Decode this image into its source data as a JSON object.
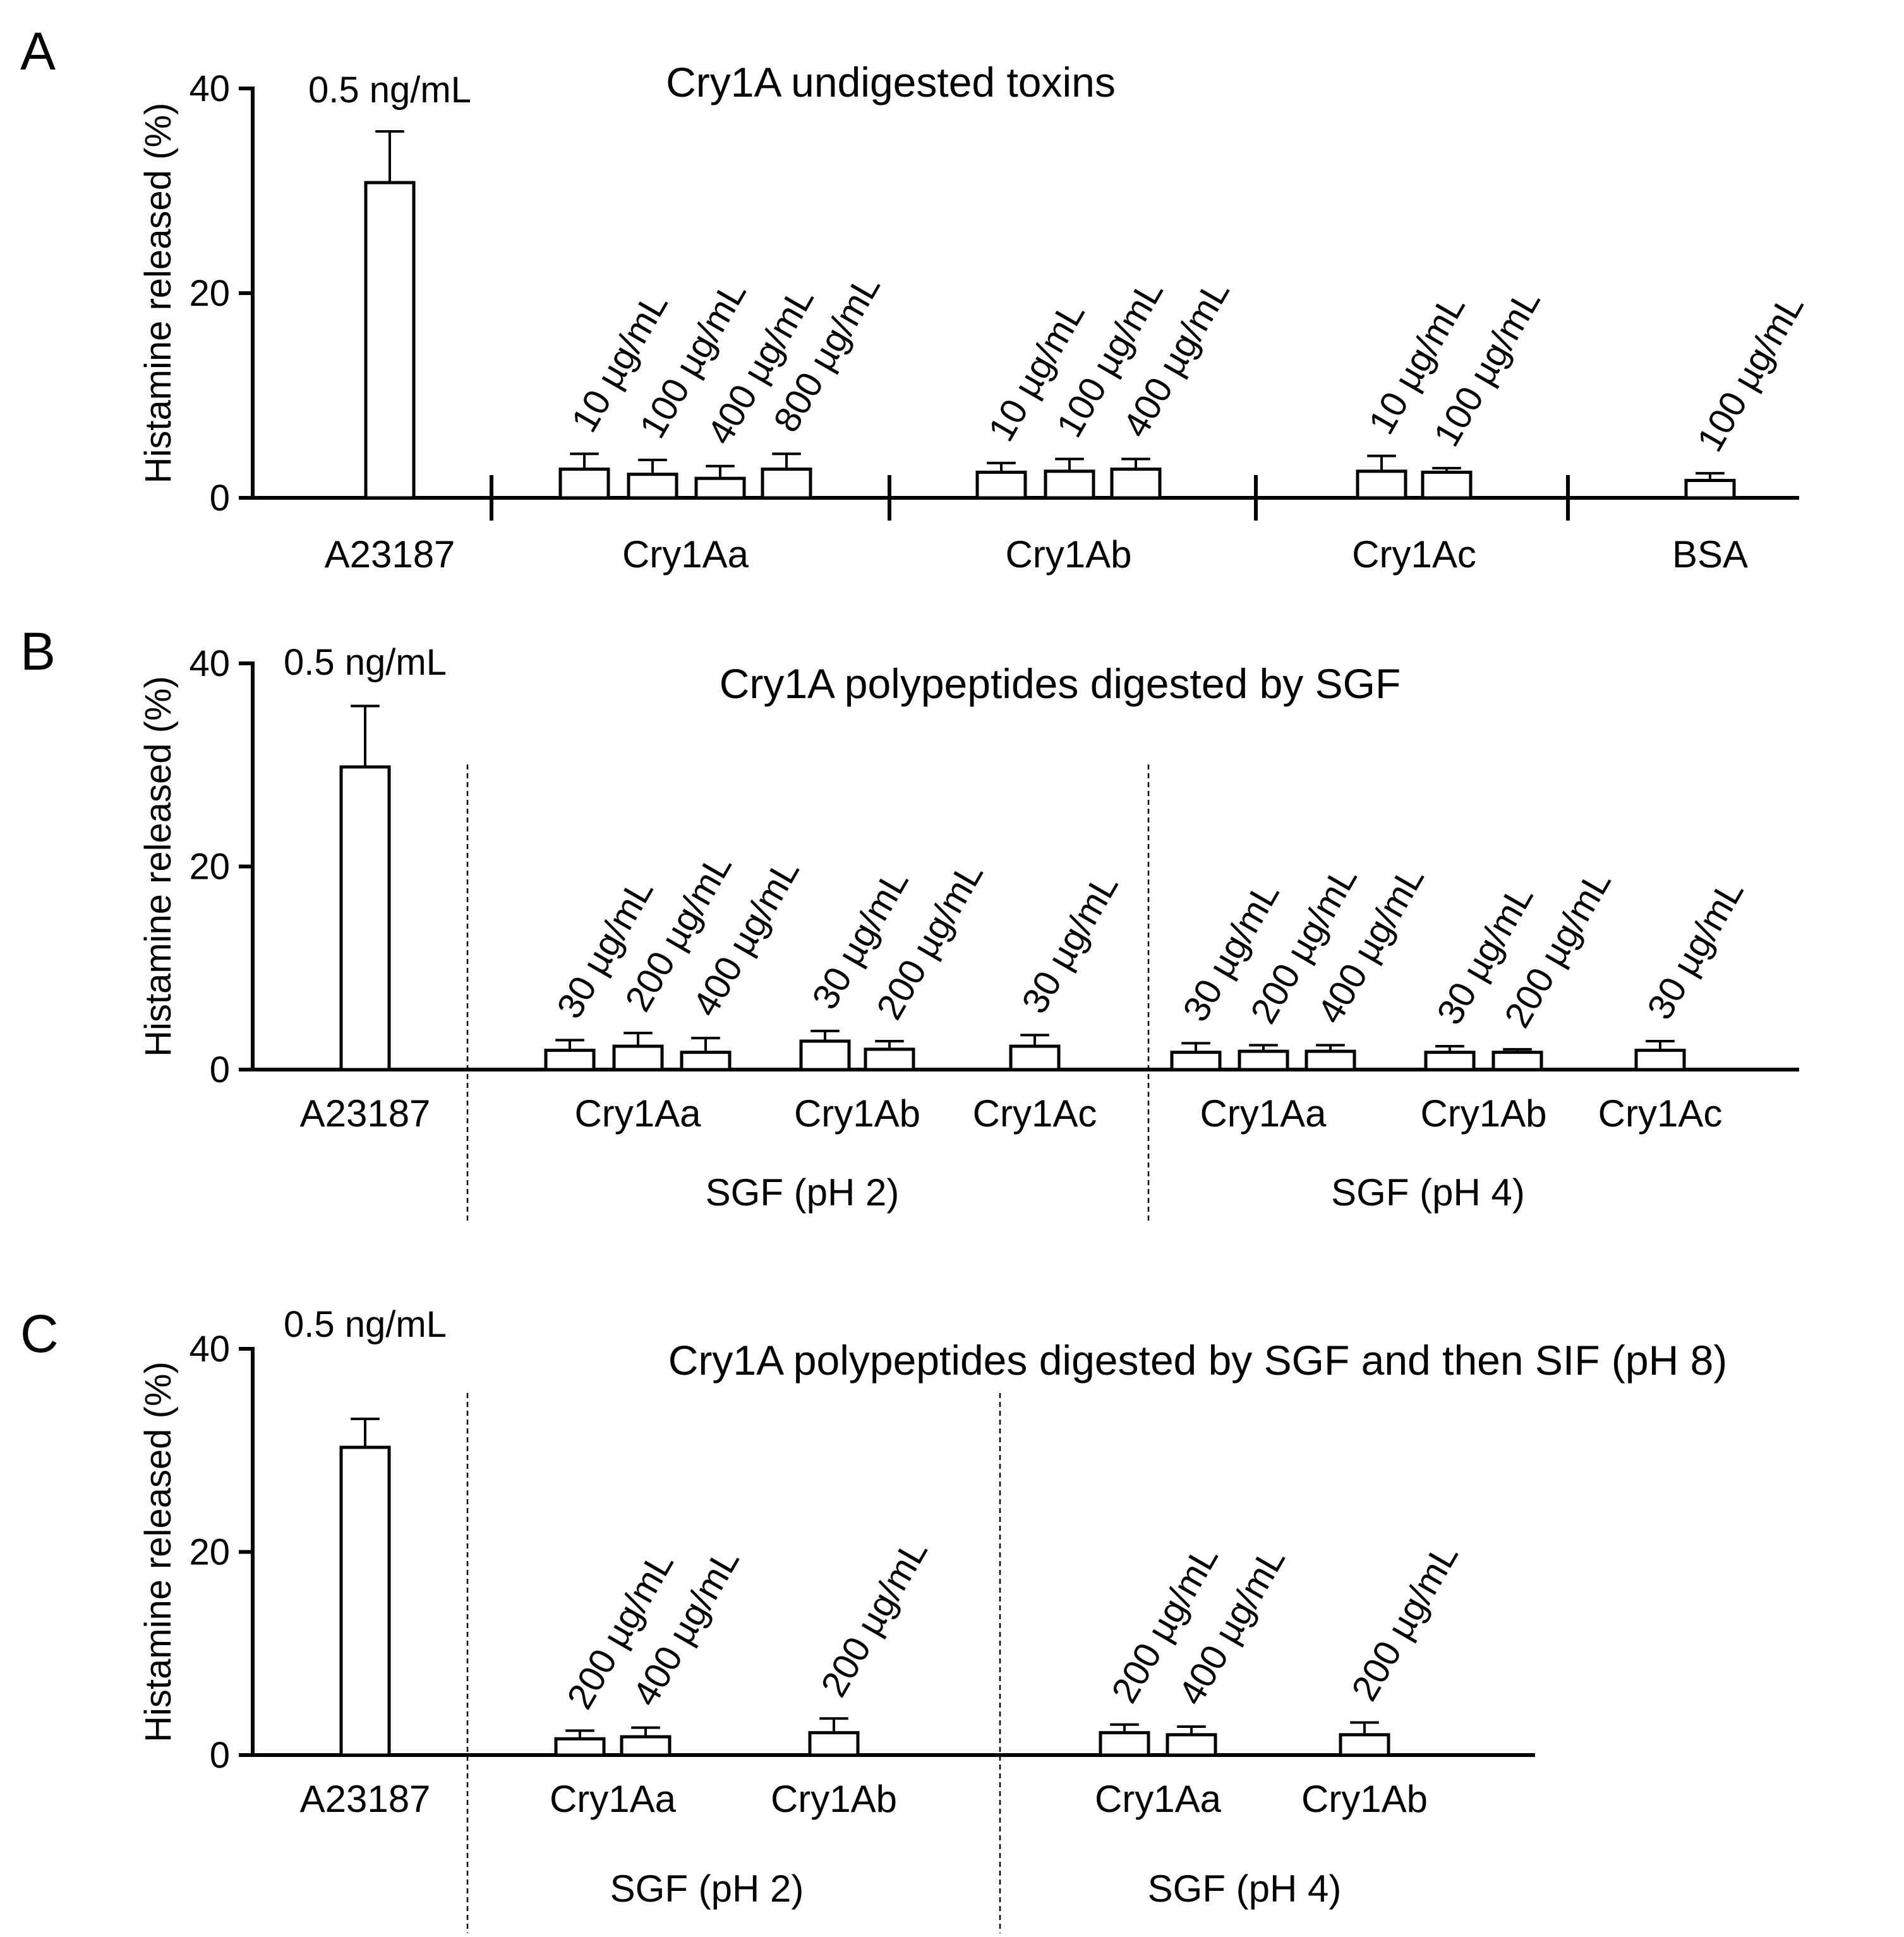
{
  "chart_data": [
    {
      "panel_letter": "A",
      "type": "bar",
      "title": "Cry1A undigested toxins",
      "ylabel": "Histamine released (%)",
      "ylim": [
        0,
        40
      ],
      "yticks": [
        "0",
        "20",
        "40"
      ],
      "control": {
        "label": "A23187",
        "concentration": "0.5 ng/mL",
        "value": 30.8,
        "error": 5.0
      },
      "groups": [
        {
          "label": "Cry1Aa",
          "bars": [
            {
              "concentration": "10 µg/mL",
              "value": 2.8,
              "error": 1.5
            },
            {
              "concentration": "100 µg/mL",
              "value": 2.3,
              "error": 1.4
            },
            {
              "concentration": "400 µg/mL",
              "value": 1.9,
              "error": 1.2
            },
            {
              "concentration": "800 µg/mL",
              "value": 2.8,
              "error": 1.5
            }
          ]
        },
        {
          "label": "Cry1Ab",
          "bars": [
            {
              "concentration": "10 µg/mL",
              "value": 2.5,
              "error": 0.9
            },
            {
              "concentration": "100 µg/mL",
              "value": 2.6,
              "error": 1.2
            },
            {
              "concentration": "400 µg/mL",
              "value": 2.8,
              "error": 1.0
            }
          ]
        },
        {
          "label": "Cry1Ac",
          "bars": [
            {
              "concentration": "10 µg/mL",
              "value": 2.6,
              "error": 1.5
            },
            {
              "concentration": "100 µg/mL",
              "value": 2.5,
              "error": 0.4
            }
          ]
        },
        {
          "label": "BSA",
          "bars": [
            {
              "concentration": "100 µg/mL",
              "value": 1.7,
              "error": 0.7
            }
          ]
        }
      ],
      "sections": []
    },
    {
      "panel_letter": "B",
      "type": "bar",
      "title": "Cry1A polypeptides digested by SGF",
      "ylabel": "Histamine released (%)",
      "ylim": [
        0,
        40
      ],
      "yticks": [
        "0",
        "20",
        "40"
      ],
      "control": {
        "label": "A23187",
        "concentration": "0.5 ng/mL",
        "value": 29.8,
        "error": 6.0
      },
      "groups": [
        {
          "label": "Cry1Aa",
          "bars": [
            {
              "concentration": "30 µg/mL",
              "value": 1.9,
              "error": 1.0
            },
            {
              "concentration": "200 µg/mL",
              "value": 2.3,
              "error": 1.3
            },
            {
              "concentration": "400 µg/mL",
              "value": 1.7,
              "error": 1.4
            }
          ]
        },
        {
          "label": "Cry1Ab",
          "bars": [
            {
              "concentration": "30 µg/mL",
              "value": 2.8,
              "error": 1.0
            },
            {
              "concentration": "200 µg/mL",
              "value": 2.0,
              "error": 0.8
            }
          ]
        },
        {
          "label": "Cry1Ac",
          "bars": [
            {
              "concentration": "30 µg/mL",
              "value": 2.3,
              "error": 1.1
            }
          ]
        },
        {
          "label": "Cry1Aa",
          "bars": [
            {
              "concentration": "30 µg/mL",
              "value": 1.7,
              "error": 0.9
            },
            {
              "concentration": "200 µg/mL",
              "value": 1.8,
              "error": 0.6
            },
            {
              "concentration": "400 µg/mL",
              "value": 1.8,
              "error": 0.6
            }
          ]
        },
        {
          "label": "Cry1Ab",
          "bars": [
            {
              "concentration": "30 µg/mL",
              "value": 1.7,
              "error": 0.6
            },
            {
              "concentration": "200 µg/mL",
              "value": 1.7,
              "error": 0.3
            }
          ]
        },
        {
          "label": "Cry1Ac",
          "bars": [
            {
              "concentration": "30 µg/mL",
              "value": 1.9,
              "error": 0.9
            }
          ]
        }
      ],
      "sections": [
        {
          "label": "SGF (pH 2)",
          "from_group": 0,
          "to_group": 2
        },
        {
          "label": "SGF (pH 4)",
          "from_group": 3,
          "to_group": 5
        }
      ]
    },
    {
      "panel_letter": "C",
      "type": "bar",
      "title": "Cry1A polypeptides digested by SGF and then SIF (pH 8)",
      "ylabel": "Histamine released (%)",
      "ylim": [
        0,
        40
      ],
      "yticks": [
        "0",
        "20",
        "40"
      ],
      "control": {
        "label": "A23187",
        "concentration": "0.5 ng/mL",
        "value": 30.3,
        "error": 2.8
      },
      "groups": [
        {
          "label": "Cry1Aa",
          "bars": [
            {
              "concentration": "200 µg/mL",
              "value": 1.6,
              "error": 0.8
            },
            {
              "concentration": "400 µg/mL",
              "value": 1.8,
              "error": 0.9
            }
          ]
        },
        {
          "label": "Cry1Ab",
          "bars": [
            {
              "concentration": "200 µg/mL",
              "value": 2.2,
              "error": 1.4
            }
          ]
        },
        {
          "label": "Cry1Aa",
          "bars": [
            {
              "concentration": "200 µg/mL",
              "value": 2.2,
              "error": 0.8
            },
            {
              "concentration": "400 µg/mL",
              "value": 2.0,
              "error": 0.8
            }
          ]
        },
        {
          "label": "Cry1Ab",
          "bars": [
            {
              "concentration": "200 µg/mL",
              "value": 2.0,
              "error": 1.2
            }
          ]
        }
      ],
      "sections": [
        {
          "label": "SGF (pH 2)",
          "from_group": 0,
          "to_group": 1
        },
        {
          "label": "SGF (pH 4)",
          "from_group": 2,
          "to_group": 3
        }
      ]
    }
  ]
}
